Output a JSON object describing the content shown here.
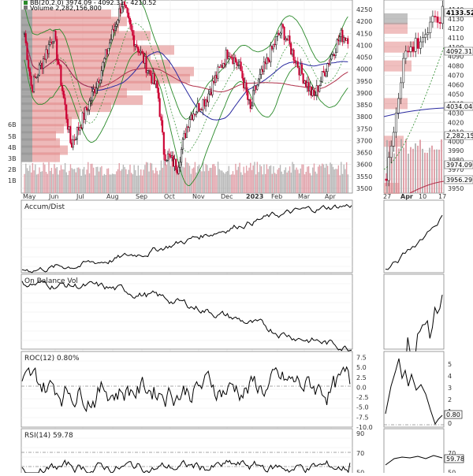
{
  "header": {
    "bb_label": "BB(20,2.0) 3974.09 - 4092.31 - 4210.52",
    "volume_label": "Volume 2,282,156,800"
  },
  "price_axis": [
    "4250",
    "4200",
    "4150",
    "4100",
    "4050",
    "4000",
    "3950",
    "3900",
    "3850",
    "3800",
    "3750",
    "3700",
    "3650",
    "3600",
    "3550",
    "3500"
  ],
  "volume_axis": [
    "6B",
    "5B",
    "4B",
    "3B",
    "2B",
    "1B"
  ],
  "month_labels": [
    "May",
    "Jun",
    "Jul",
    "Aug",
    "Sep",
    "Oct",
    "Nov",
    "Dec",
    "2023",
    "Feb",
    "Mar",
    "Apr"
  ],
  "right_month_labels": [
    "27",
    "Apr",
    "10",
    "17"
  ],
  "right_price_axis": [
    "4140",
    "4130",
    "4120",
    "4110",
    "4100",
    "4090",
    "4080",
    "4070",
    "4060",
    "4050",
    "4040",
    "4030",
    "4020",
    "4010",
    "4000",
    "3990",
    "3980",
    "3970",
    "3960",
    "3950"
  ],
  "right_tags": {
    "last": "4133.52",
    "bb_mid": "4092.31",
    "ma": "4034.04",
    "volume": "2,282,156",
    "bb_low": "3974.09",
    "ma2": "3956.29"
  },
  "panels": {
    "ad_label": "Accum/Dist",
    "obv_label": "On Balance Vol",
    "roc_label": "ROC(12) 0.80%",
    "roc_axis": [
      "7.5",
      "5.0",
      "2.5",
      "0.0",
      "-2.5",
      "-5.0",
      "-7.5",
      "-10.0"
    ],
    "roc_right_axis": [
      "5",
      "4",
      "3",
      "2",
      "1",
      "0"
    ],
    "roc_right_tag": "0.80",
    "rsi_label": "RSI(14) 59.78",
    "rsi_axis": [
      "90",
      "70",
      "50"
    ],
    "rsi_right_axis": [
      "70",
      "50"
    ],
    "rsi_right_tag": "59.78"
  },
  "colors": {
    "up": "#111111",
    "down": "#cc0033",
    "bb": "#2a8a2a",
    "ma_blue": "#2a2aa0",
    "ma_red": "#b0304a",
    "volume_profile": "#e38a8a",
    "volume_profile_gray": "#999999"
  },
  "chart_data": {
    "type": "candlestick",
    "ylim": [
      3480,
      4290
    ],
    "close_anchors": [
      [
        "May",
        4150
      ],
      [
        "May",
        3920
      ],
      [
        "Jun",
        4150
      ],
      [
        "Jun",
        3680
      ],
      [
        "Jul",
        3830
      ],
      [
        "Jul",
        3990
      ],
      [
        "Aug",
        4280
      ],
      [
        "Aug",
        4140
      ],
      [
        "Sep",
        3910
      ],
      [
        "Sep",
        3650
      ],
      [
        "Oct",
        3590
      ],
      [
        "Oct",
        3800
      ],
      [
        "Nov",
        3880
      ],
      [
        "Nov",
        4080
      ],
      [
        "Dec",
        4000
      ],
      [
        "Dec",
        3820
      ],
      [
        "2023",
        3900
      ],
      [
        "2023",
        4120
      ],
      [
        "Feb",
        4170
      ],
      [
        "Feb",
        4000
      ],
      [
        "Mar",
        3880
      ],
      [
        "Mar",
        4020
      ],
      [
        "Apr",
        4140
      ],
      [
        "Apr",
        4133.52
      ]
    ],
    "right_close_anchors": [
      [
        "27",
        3960
      ],
      [
        "Apr",
        4090
      ],
      [
        "10",
        4110
      ],
      [
        "17",
        4133.52
      ]
    ],
    "bollinger_last": {
      "lower": 3974.09,
      "middle": 4092.31,
      "upper": 4210.52
    },
    "volume_last": 2282156800,
    "accum_dist_trend": "rising",
    "obv_trend": "falling then flat",
    "roc_last": 0.8,
    "roc_ylim": [
      -10,
      9
    ],
    "rsi_last": 59.78,
    "rsi_ylim": [
      30,
      95
    ]
  }
}
